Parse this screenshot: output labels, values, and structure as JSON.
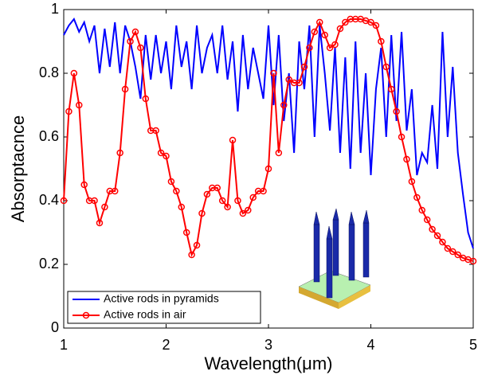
{
  "chart_data": {
    "type": "line",
    "xlabel": "Wavelength(μm)",
    "ylabel": "Absorptacnce",
    "x": [
      1,
      1.05,
      1.1,
      1.15,
      1.2,
      1.25,
      1.3,
      1.35,
      1.4,
      1.45,
      1.5,
      1.55,
      1.6,
      1.65,
      1.7,
      1.75,
      1.8,
      1.85,
      1.9,
      1.95,
      2,
      2.05,
      2.1,
      2.15,
      2.2,
      2.25,
      2.3,
      2.35,
      2.4,
      2.45,
      2.5,
      2.55,
      2.6,
      2.65,
      2.7,
      2.75,
      2.8,
      2.85,
      2.9,
      2.95,
      3,
      3.05,
      3.1,
      3.15,
      3.2,
      3.25,
      3.3,
      3.35,
      3.4,
      3.45,
      3.5,
      3.55,
      3.6,
      3.65,
      3.7,
      3.75,
      3.8,
      3.85,
      3.9,
      3.95,
      4,
      4.05,
      4.1,
      4.15,
      4.2,
      4.25,
      4.3,
      4.35,
      4.4,
      4.45,
      4.5,
      4.55,
      4.6,
      4.65,
      4.7,
      4.75,
      4.8,
      4.85,
      4.9,
      4.95,
      5
    ],
    "series": [
      {
        "name": "Active rods in pyramids",
        "color": "#0000ff",
        "marker": "none",
        "values": [
          0.92,
          0.95,
          0.97,
          0.93,
          0.96,
          0.9,
          0.95,
          0.8,
          0.94,
          0.82,
          0.96,
          0.8,
          0.95,
          0.9,
          0.82,
          0.72,
          0.92,
          0.78,
          0.92,
          0.8,
          0.9,
          0.75,
          0.95,
          0.82,
          0.9,
          0.75,
          0.95,
          0.8,
          0.88,
          0.92,
          0.8,
          0.95,
          0.78,
          0.9,
          0.68,
          0.92,
          0.75,
          0.88,
          0.8,
          0.72,
          0.95,
          0.7,
          0.92,
          0.65,
          0.8,
          0.55,
          0.9,
          0.75,
          0.95,
          0.6,
          0.95,
          0.8,
          0.62,
          0.88,
          0.55,
          0.85,
          0.5,
          0.9,
          0.55,
          0.8,
          0.48,
          0.75,
          0.88,
          0.6,
          0.92,
          0.65,
          0.93,
          0.62,
          0.75,
          0.48,
          0.55,
          0.52,
          0.7,
          0.5,
          0.93,
          0.6,
          0.82,
          0.55,
          0.42,
          0.3,
          0.25
        ]
      },
      {
        "name": "Active rods in air",
        "color": "#ff0000",
        "marker": "o",
        "values": [
          0.4,
          0.68,
          0.8,
          0.7,
          0.45,
          0.4,
          0.4,
          0.33,
          0.38,
          0.43,
          0.43,
          0.55,
          0.75,
          0.9,
          0.93,
          0.88,
          0.72,
          0.62,
          0.62,
          0.55,
          0.54,
          0.46,
          0.43,
          0.38,
          0.3,
          0.23,
          0.26,
          0.36,
          0.42,
          0.44,
          0.44,
          0.4,
          0.38,
          0.59,
          0.4,
          0.36,
          0.37,
          0.41,
          0.43,
          0.43,
          0.5,
          0.8,
          0.55,
          0.7,
          0.78,
          0.77,
          0.77,
          0.82,
          0.88,
          0.93,
          0.96,
          0.92,
          0.88,
          0.89,
          0.94,
          0.96,
          0.97,
          0.97,
          0.97,
          0.965,
          0.96,
          0.95,
          0.9,
          0.82,
          0.75,
          0.68,
          0.6,
          0.53,
          0.46,
          0.41,
          0.37,
          0.34,
          0.31,
          0.29,
          0.27,
          0.25,
          0.24,
          0.23,
          0.22,
          0.215,
          0.21
        ]
      }
    ],
    "xlim": [
      1,
      5
    ],
    "xticks": [
      1,
      2,
      3,
      4,
      5
    ],
    "ylim": [
      0,
      1
    ],
    "yticks": [
      0,
      0.2,
      0.4,
      0.6,
      0.8,
      1
    ],
    "legend": "lower left"
  }
}
